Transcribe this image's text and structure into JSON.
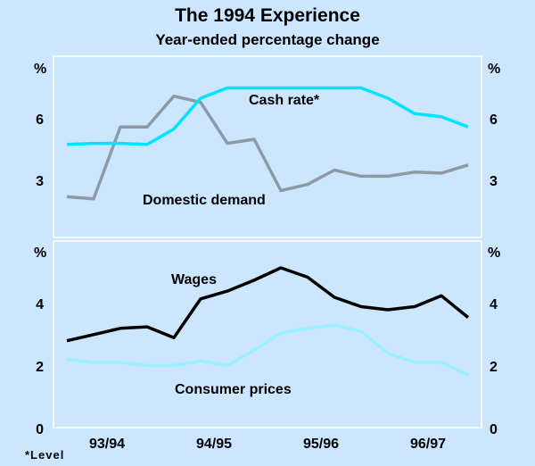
{
  "title": "The 1994 Experience",
  "subtitle": "Year-ended percentage change",
  "footnote": "*Level",
  "colors": {
    "background": "#cce6ff",
    "cash_rate": "#00e5ff",
    "domestic_demand": "#8c9ba3",
    "wages": "#000000",
    "consumer_prices": "#99f0ff"
  },
  "chart_data": [
    {
      "type": "line",
      "panel": "top",
      "unit_label": "%",
      "ylim": [
        0,
        9
      ],
      "yticks": [
        "3",
        "6"
      ],
      "ytick_values": [
        3,
        6
      ],
      "x": [
        0,
        1,
        2,
        3,
        4,
        5,
        6,
        7,
        8,
        9,
        10,
        11,
        12,
        13,
        14,
        15
      ],
      "series": [
        {
          "name": "Cash rate*",
          "values": [
            4.75,
            4.8,
            4.8,
            4.75,
            5.5,
            7.0,
            7.5,
            7.5,
            7.5,
            7.5,
            7.5,
            7.5,
            7.0,
            6.25,
            6.1,
            5.6
          ]
        },
        {
          "name": "Domestic demand",
          "values": [
            2.2,
            2.1,
            5.6,
            5.6,
            7.1,
            6.8,
            4.8,
            5.0,
            2.5,
            2.8,
            3.5,
            3.2,
            3.2,
            3.4,
            3.35,
            3.75
          ]
        }
      ]
    },
    {
      "type": "line",
      "panel": "bottom",
      "unit_label": "%",
      "ylim": [
        0,
        6
      ],
      "yticks": [
        "0",
        "2",
        "4"
      ],
      "ytick_values": [
        0,
        2,
        4
      ],
      "categories": [
        "93/94",
        "94/95",
        "95/96",
        "96/97"
      ],
      "x": [
        0,
        1,
        2,
        3,
        4,
        5,
        6,
        7,
        8,
        9,
        10,
        11,
        12,
        13,
        14,
        15
      ],
      "series": [
        {
          "name": "Wages",
          "values": [
            2.8,
            3.0,
            3.2,
            3.25,
            2.9,
            4.15,
            4.4,
            4.75,
            5.15,
            4.85,
            4.2,
            3.9,
            3.8,
            3.9,
            4.25,
            3.55
          ]
        },
        {
          "name": "Consumer prices",
          "values": [
            2.2,
            2.1,
            2.1,
            2.0,
            2.0,
            2.15,
            2.0,
            2.5,
            3.05,
            3.2,
            3.3,
            3.1,
            2.4,
            2.1,
            2.1,
            1.7
          ]
        }
      ]
    }
  ]
}
